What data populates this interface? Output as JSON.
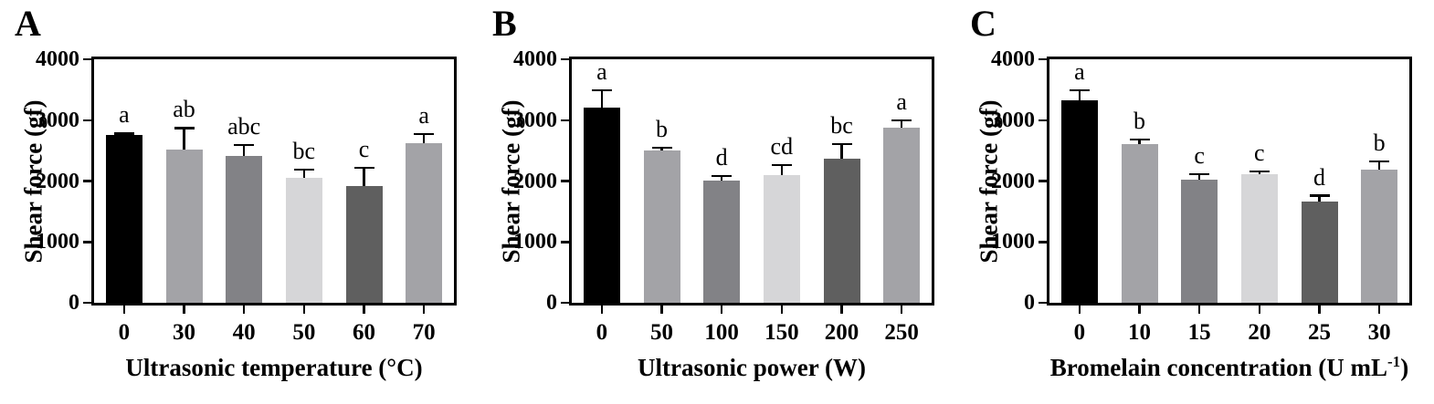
{
  "figure": {
    "background": "#ffffff",
    "axis_color": "#000000",
    "error_bar_color": "#000000"
  },
  "chart_data": [
    {
      "type": "bar",
      "panel_label": "A",
      "title": "",
      "ylabel": "Shear force (gf)",
      "xlabel_parts": [
        {
          "t": "Ultrasonic temperature (°C)",
          "sup": false
        }
      ],
      "ylim": [
        0,
        4000
      ],
      "yticks": [
        0,
        1000,
        2000,
        3000,
        4000
      ],
      "categories": [
        "0",
        "30",
        "40",
        "50",
        "60",
        "70"
      ],
      "values": [
        2750,
        2520,
        2410,
        2060,
        1920,
        2620
      ],
      "errors": [
        30,
        350,
        180,
        130,
        300,
        150
      ],
      "sig_letters": [
        "a",
        "ab",
        "abc",
        "bc",
        "c",
        "a"
      ],
      "bar_colors": [
        "#000000",
        "#a3a3a7",
        "#828286",
        "#d6d6d8",
        "#5f5f5f",
        "#a3a3a7"
      ],
      "grid": false,
      "legend": "none"
    },
    {
      "type": "bar",
      "panel_label": "B",
      "title": "",
      "ylabel": "Shear force (gf)",
      "xlabel_parts": [
        {
          "t": "Ultrasonic power (W)",
          "sup": false
        }
      ],
      "ylim": [
        0,
        4000
      ],
      "yticks": [
        0,
        1000,
        2000,
        3000,
        4000
      ],
      "categories": [
        "0",
        "50",
        "100",
        "150",
        "200",
        "250"
      ],
      "values": [
        3210,
        2500,
        2010,
        2100,
        2360,
        2880
      ],
      "errors": [
        280,
        50,
        70,
        160,
        250,
        120
      ],
      "sig_letters": [
        "a",
        "b",
        "d",
        "cd",
        "bc",
        "a"
      ],
      "bar_colors": [
        "#000000",
        "#a3a3a7",
        "#828286",
        "#d6d6d8",
        "#5f5f5f",
        "#a3a3a7"
      ],
      "grid": false,
      "legend": "none"
    },
    {
      "type": "bar",
      "panel_label": "C",
      "title": "",
      "ylabel": "Shear force (gf)",
      "xlabel_parts": [
        {
          "t": "Bromelain concentration (U mL",
          "sup": false
        },
        {
          "t": "-1",
          "sup": true
        },
        {
          "t": ")",
          "sup": false
        }
      ],
      "ylim": [
        0,
        4000
      ],
      "yticks": [
        0,
        1000,
        2000,
        3000,
        4000
      ],
      "categories": [
        "0",
        "10",
        "15",
        "20",
        "25",
        "30"
      ],
      "values": [
        3320,
        2600,
        2030,
        2110,
        1660,
        2190
      ],
      "errors": [
        170,
        80,
        80,
        50,
        100,
        130
      ],
      "sig_letters": [
        "a",
        "b",
        "c",
        "c",
        "d",
        "b"
      ],
      "bar_colors": [
        "#000000",
        "#a3a3a7",
        "#828286",
        "#d6d6d8",
        "#5f5f5f",
        "#a3a3a7"
      ],
      "grid": false,
      "legend": "none"
    }
  ]
}
